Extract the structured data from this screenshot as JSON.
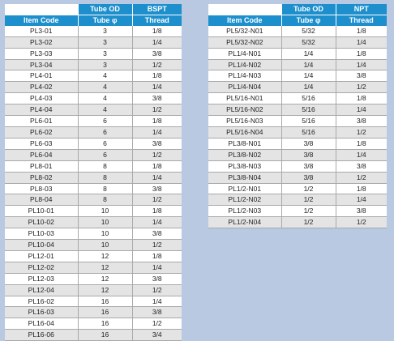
{
  "bspt_table": {
    "group_header_1": "Tube OD",
    "group_header_2": "BSPT",
    "col1": "Item Code",
    "col2": "Tube φ",
    "col3": "Thread",
    "rows": [
      [
        "PL3-01",
        "3",
        "1/8"
      ],
      [
        "PL3-02",
        "3",
        "1/4"
      ],
      [
        "PL3-03",
        "3",
        "3/8"
      ],
      [
        "PL3-04",
        "3",
        "1/2"
      ],
      [
        "PL4-01",
        "4",
        "1/8"
      ],
      [
        "PL4-02",
        "4",
        "1/4"
      ],
      [
        "PL4-03",
        "4",
        "3/8"
      ],
      [
        "PL4-04",
        "4",
        "1/2"
      ],
      [
        "PL6-01",
        "6",
        "1/8"
      ],
      [
        "PL6-02",
        "6",
        "1/4"
      ],
      [
        "PL6-03",
        "6",
        "3/8"
      ],
      [
        "PL6-04",
        "6",
        "1/2"
      ],
      [
        "PL8-01",
        "8",
        "1/8"
      ],
      [
        "PL8-02",
        "8",
        "1/4"
      ],
      [
        "PL8-03",
        "8",
        "3/8"
      ],
      [
        "PL8-04",
        "8",
        "1/2"
      ],
      [
        "PL10-01",
        "10",
        "1/8"
      ],
      [
        "PL10-02",
        "10",
        "1/4"
      ],
      [
        "PL10-03",
        "10",
        "3/8"
      ],
      [
        "PL10-04",
        "10",
        "1/2"
      ],
      [
        "PL12-01",
        "12",
        "1/8"
      ],
      [
        "PL12-02",
        "12",
        "1/4"
      ],
      [
        "PL12-03",
        "12",
        "3/8"
      ],
      [
        "PL12-04",
        "12",
        "1/2"
      ],
      [
        "PL16-02",
        "16",
        "1/4"
      ],
      [
        "PL16-03",
        "16",
        "3/8"
      ],
      [
        "PL16-04",
        "16",
        "1/2"
      ],
      [
        "PL16-06",
        "16",
        "3/4"
      ]
    ]
  },
  "npt_table": {
    "group_header_1": "Tube OD",
    "group_header_2": "NPT",
    "col1": "Item Code",
    "col2": "Tube φ",
    "col3": "Thread",
    "rows": [
      [
        "PL5/32-N01",
        "5/32",
        "1/8"
      ],
      [
        "PL5/32-N02",
        "5/32",
        "1/4"
      ],
      [
        "PL1/4-N01",
        "1/4",
        "1/8"
      ],
      [
        "PL1/4-N02",
        "1/4",
        "1/4"
      ],
      [
        "PL1/4-N03",
        "1/4",
        "3/8"
      ],
      [
        "PL1/4-N04",
        "1/4",
        "1/2"
      ],
      [
        "PL5/16-N01",
        "5/16",
        "1/8"
      ],
      [
        "PL5/16-N02",
        "5/16",
        "1/4"
      ],
      [
        "PL5/16-N03",
        "5/16",
        "3/8"
      ],
      [
        "PL5/16-N04",
        "5/16",
        "1/2"
      ],
      [
        "PL3/8-N01",
        "3/8",
        "1/8"
      ],
      [
        "PL3/8-N02",
        "3/8",
        "1/4"
      ],
      [
        "PL3/8-N03",
        "3/8",
        "3/8"
      ],
      [
        "PL3/8-N04",
        "3/8",
        "1/2"
      ],
      [
        "PL1/2-N01",
        "1/2",
        "1/8"
      ],
      [
        "PL1/2-N02",
        "1/2",
        "1/4"
      ],
      [
        "PL1/2-N03",
        "1/2",
        "3/8"
      ],
      [
        "PL1/2-N04",
        "1/2",
        "1/2"
      ]
    ]
  },
  "colors": {
    "header_blue": "#1d8fcd",
    "page_background": "#b9c9e2",
    "row_alt": "#e4e4e4"
  }
}
